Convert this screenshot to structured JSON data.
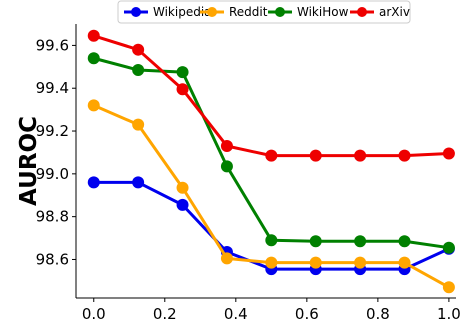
{
  "chart_data": {
    "type": "line",
    "title": "",
    "xlabel": "",
    "ylabel": "AUROC",
    "x": [
      0.0,
      0.125,
      0.25,
      0.375,
      0.5,
      0.625,
      0.75,
      0.875,
      1.0
    ],
    "xlim": [
      -0.05,
      1.02
    ],
    "ylim": [
      98.42,
      99.7
    ],
    "xticks": [
      0.0,
      0.2,
      0.4,
      0.6,
      0.8,
      1.0
    ],
    "xtick_labels": [
      "0.0",
      "0.2",
      "0.4",
      "0.6",
      "0.8",
      "1.0"
    ],
    "yticks": [
      98.6,
      98.8,
      99.0,
      99.2,
      99.4,
      99.6
    ],
    "ytick_labels": [
      "98.6",
      "98.8",
      "99.0",
      "99.2",
      "99.4",
      "99.6"
    ],
    "grid": false,
    "legend_position": "top",
    "series": [
      {
        "name": "Wikipedia",
        "color": "#0000ee",
        "values": [
          98.96,
          98.96,
          98.855,
          98.635,
          98.555,
          98.555,
          98.555,
          98.555,
          98.65
        ]
      },
      {
        "name": "Reddit",
        "color": "#ffa500",
        "values": [
          99.32,
          99.23,
          98.935,
          98.605,
          98.585,
          98.585,
          98.585,
          98.585,
          98.47
        ]
      },
      {
        "name": "WikiHow",
        "color": "#008000",
        "values": [
          99.54,
          99.485,
          99.475,
          99.035,
          98.69,
          98.685,
          98.685,
          98.685,
          98.655
        ]
      },
      {
        "name": "arXiv",
        "color": "#ee0000",
        "values": [
          99.645,
          99.58,
          99.395,
          99.13,
          99.085,
          99.085,
          99.085,
          99.085,
          99.095
        ]
      }
    ]
  }
}
